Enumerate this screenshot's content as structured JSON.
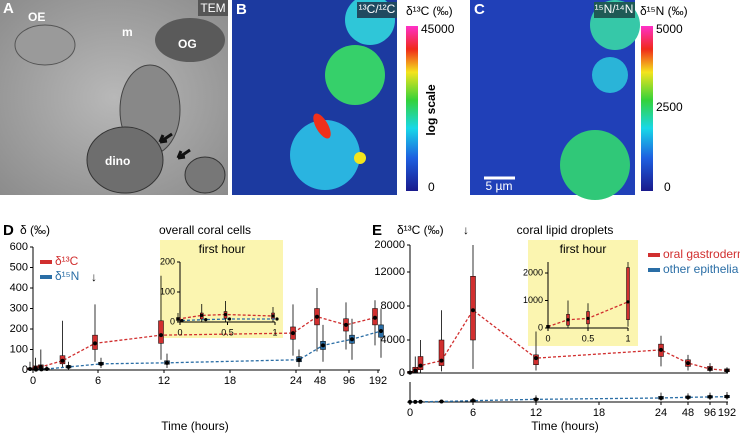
{
  "images": [
    {
      "letter": "A",
      "tag": "TEM",
      "labels": [
        "OE",
        "m",
        "OG",
        "dino"
      ]
    },
    {
      "letter": "B",
      "tag": "¹³C/¹²C",
      "colorbar_title": "δ¹³C (‰)",
      "colorbar_ticks": [
        45000,
        0
      ],
      "colorbar_note": "log scale"
    },
    {
      "letter": "C",
      "tag": "¹⁵N/¹⁴N",
      "colorbar_title": "δ¹⁵N (‰)",
      "colorbar_ticks": [
        5000,
        2500,
        0
      ],
      "scale_bar": "5 µm"
    }
  ],
  "chart_data": [
    {
      "type": "box",
      "panel": "D",
      "title": "overall coral cells",
      "ylabel": "δ (‰)",
      "xlabel": "Time (hours)",
      "annotation": "↓",
      "xlim": [
        0,
        192
      ],
      "xticks": [
        0,
        6,
        12,
        18,
        24,
        48,
        96,
        192
      ],
      "ylim": [
        0,
        600
      ],
      "yticks": [
        0,
        100,
        200,
        300,
        400,
        500,
        600
      ],
      "series": [
        {
          "name": "δ¹³C",
          "color": "#d12f2f",
          "x": [
            0,
            0.5,
            1,
            3,
            6,
            12,
            24,
            48,
            96,
            192
          ],
          "values": [
            5,
            10,
            15,
            45,
            130,
            170,
            180,
            260,
            220,
            255
          ],
          "q1": [
            2,
            5,
            8,
            30,
            100,
            130,
            150,
            220,
            190,
            220
          ],
          "q3": [
            10,
            20,
            25,
            70,
            170,
            240,
            210,
            300,
            250,
            300
          ],
          "whisker_low": [
            0,
            0,
            2,
            10,
            40,
            50,
            70,
            90,
            100,
            120
          ],
          "whisker_high": [
            40,
            60,
            100,
            240,
            320,
            460,
            320,
            400,
            330,
            340
          ]
        },
        {
          "name": "δ¹⁵N",
          "color": "#2a6ea6",
          "x": [
            0,
            0.5,
            1,
            3,
            6,
            12,
            24,
            48,
            96,
            192
          ],
          "values": [
            2,
            3,
            5,
            15,
            30,
            35,
            50,
            120,
            150,
            190
          ],
          "q1": [
            1,
            1,
            2,
            10,
            25,
            28,
            40,
            100,
            130,
            160
          ],
          "q3": [
            4,
            6,
            8,
            22,
            38,
            45,
            65,
            140,
            170,
            220
          ],
          "whisker_low": [
            0,
            0,
            0,
            2,
            10,
            10,
            15,
            40,
            50,
            60
          ],
          "whisker_high": [
            10,
            15,
            20,
            40,
            60,
            80,
            100,
            220,
            250,
            300
          ]
        }
      ]
    },
    {
      "type": "box",
      "title": "first hour",
      "xlim": [
        0,
        1
      ],
      "xticks": [
        0,
        0.5,
        1
      ],
      "ylim": [
        0,
        200
      ],
      "yticks": [
        0,
        100,
        200
      ],
      "series": [
        {
          "color": "#d12f2f",
          "x": [
            0,
            0.25,
            0.5,
            1
          ],
          "values": [
            10,
            22,
            25,
            20
          ],
          "q1": [
            5,
            10,
            12,
            10
          ],
          "q3": [
            15,
            30,
            35,
            30
          ],
          "whisker_low": [
            0,
            0,
            0,
            0
          ],
          "whisker_high": [
            30,
            60,
            70,
            50
          ]
        },
        {
          "color": "#2a6ea6",
          "x": [
            0,
            0.25,
            0.5,
            1
          ],
          "values": [
            5,
            8,
            10,
            10
          ]
        }
      ]
    },
    {
      "type": "box",
      "panel": "E",
      "title": "coral lipid droplets",
      "ylabel": "δ¹³C (‰)",
      "xlabel": "Time (hours)",
      "annotation": "↓",
      "xlim": [
        0,
        192
      ],
      "xticks": [
        0,
        6,
        12,
        18,
        24,
        48,
        96,
        192
      ],
      "ylim": [
        0,
        20000
      ],
      "yticks": [
        0,
        4000,
        8000,
        12000,
        20000
      ],
      "y2lim": [
        0,
        1500
      ],
      "series": [
        {
          "name": "oral gastroderm",
          "color": "#d12f2f",
          "x": [
            0,
            0.5,
            1,
            3,
            6,
            12,
            24,
            48,
            96,
            192
          ],
          "values": [
            50,
            300,
            900,
            1500,
            7500,
            1800,
            2800,
            1200,
            500,
            300
          ],
          "q1": [
            20,
            100,
            400,
            900,
            4000,
            1000,
            2000,
            800,
            300,
            150
          ],
          "q3": [
            200,
            700,
            2000,
            4000,
            11500,
            2200,
            3500,
            1600,
            800,
            500
          ],
          "whisker_low": [
            0,
            0,
            0,
            200,
            500,
            300,
            800,
            300,
            100,
            50
          ],
          "whisker_high": [
            800,
            2000,
            4000,
            7500,
            20000,
            5000,
            4500,
            2200,
            1200,
            700
          ]
        },
        {
          "name": "other epithelia",
          "color": "#2a6ea6",
          "axis": "y2",
          "x": [
            0,
            0.5,
            1,
            3,
            6,
            12,
            24,
            48,
            96,
            192
          ],
          "values": [
            5,
            10,
            20,
            40,
            100,
            200,
            300,
            350,
            380,
            400
          ],
          "q1": [
            2,
            5,
            10,
            25,
            60,
            150,
            220,
            280,
            300,
            320
          ],
          "q3": [
            10,
            20,
            35,
            60,
            160,
            280,
            420,
            450,
            480,
            500
          ],
          "whisker_low": [
            0,
            0,
            0,
            5,
            20,
            50,
            100,
            150,
            150,
            180
          ],
          "whisker_high": [
            30,
            50,
            80,
            120,
            300,
            500,
            700,
            650,
            700,
            750
          ]
        }
      ]
    },
    {
      "type": "box",
      "title": "first hour",
      "xlim": [
        0,
        1
      ],
      "xticks": [
        0,
        0.5,
        1
      ],
      "ylim": [
        0,
        2400
      ],
      "yticks": [
        0,
        1000,
        2000
      ],
      "series": [
        {
          "color": "#d12f2f",
          "x": [
            0,
            0.25,
            0.5,
            1
          ],
          "values": [
            50,
            300,
            350,
            950
          ],
          "q1": [
            20,
            100,
            150,
            300
          ],
          "q3": [
            100,
            500,
            600,
            2200
          ],
          "whisker_low": [
            0,
            0,
            0,
            50
          ],
          "whisker_high": [
            200,
            1000,
            900,
            2400
          ]
        }
      ]
    }
  ]
}
